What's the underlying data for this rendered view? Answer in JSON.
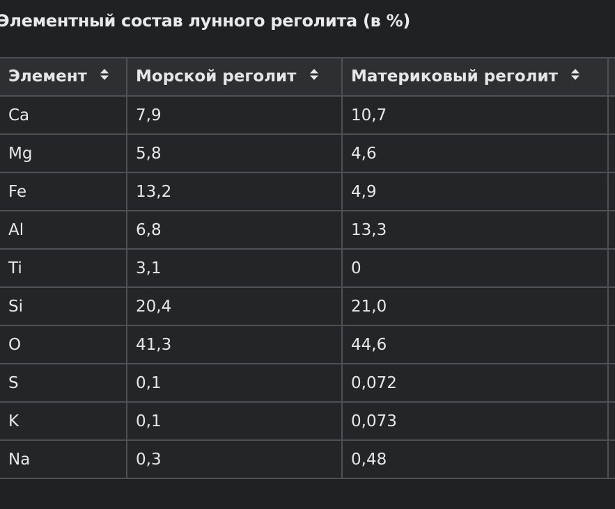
{
  "table": {
    "caption": "Элементный состав лунного реголита (в %)",
    "headers": [
      "Элемент",
      "Морской реголит",
      "Материковый реголит"
    ],
    "rows": [
      [
        "Ca",
        "7,9",
        "10,7"
      ],
      [
        "Mg",
        "5,8",
        "4,6"
      ],
      [
        "Fe",
        "13,2",
        "4,9"
      ],
      [
        "Al",
        "6,8",
        "13,3"
      ],
      [
        "Ti",
        "3,1",
        "0"
      ],
      [
        "Si",
        "20,4",
        "21,0"
      ],
      [
        "O",
        "41,3",
        "44,6"
      ],
      [
        "S",
        "0,1",
        "0,072"
      ],
      [
        "K",
        "0,1",
        "0,073"
      ],
      [
        "Na",
        "0,3",
        "0,48"
      ]
    ],
    "sort_icon": "sort-up-down-icon"
  },
  "colors": {
    "background": "#202122",
    "header_bg": "#2d2f31",
    "cell_bg": "#242526",
    "border": "#4e5154",
    "text": "#e8e8e8"
  }
}
